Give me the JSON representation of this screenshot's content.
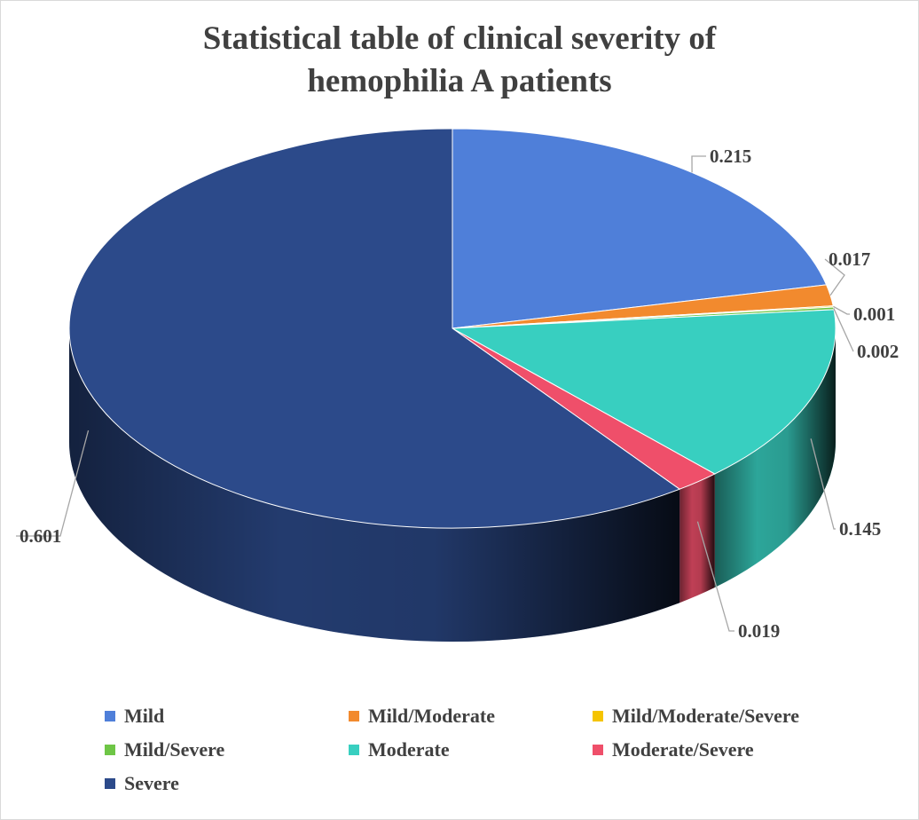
{
  "title_line1": "Statistical table of clinical severity of",
  "title_line2": "hemophilia A patients",
  "chart_data": {
    "type": "pie",
    "title": "Statistical table of clinical severity of hemophilia A patients",
    "legend_position": "bottom",
    "categories": [
      "Mild",
      "Mild/Moderate",
      "Mild/Moderate/Severe",
      "Mild/Severe",
      "Moderate",
      "Moderate/Severe",
      "Severe"
    ],
    "values": [
      0.215,
      0.017,
      0.001,
      0.002,
      0.145,
      0.019,
      0.601
    ],
    "labels": [
      "0.215",
      "0.017",
      "0.001",
      "0.002",
      "0.145",
      "0.019",
      "0.601"
    ],
    "colors": [
      "#4f7fd9",
      "#f28a2e",
      "#f5c400",
      "#6ec646",
      "#38cfc0",
      "#ef4f6a",
      "#2c4a8a"
    ]
  }
}
